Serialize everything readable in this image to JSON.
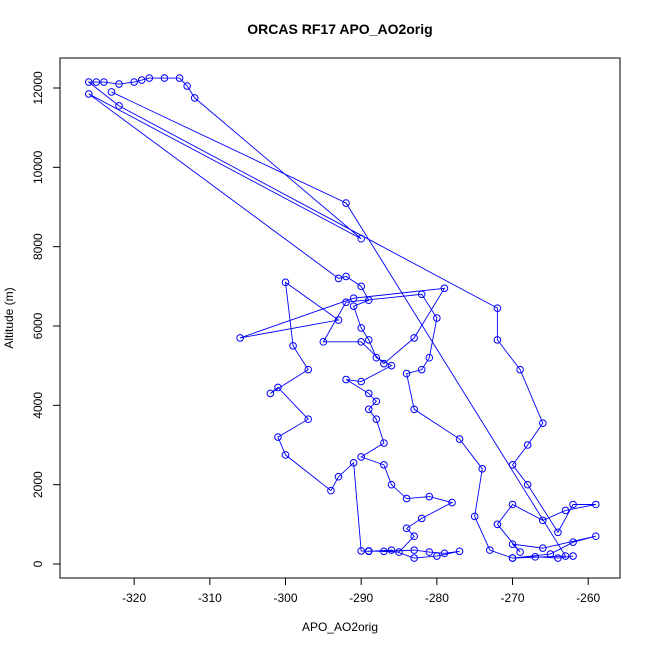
{
  "chart_data": {
    "type": "line",
    "title": "ORCAS RF17 APO_AO2orig",
    "x_label": "APO_AO2orig",
    "y_label": "Altitude (m)",
    "color": "#0000ff",
    "marker": "open-circle",
    "x": [
      -262,
      -264,
      -267,
      -270,
      -265,
      -262,
      -259,
      -266,
      -270,
      -269,
      -272,
      -270,
      -266,
      -263,
      -259,
      -262,
      -264,
      -268,
      -270,
      -268,
      -266,
      -269,
      -272,
      -272,
      -322,
      -326,
      -325,
      -324,
      -322,
      -320,
      -319,
      -318,
      -316,
      -314,
      -313,
      -312,
      -290,
      -326,
      -293,
      -292,
      -290,
      -289,
      -291,
      -290,
      -289,
      -288,
      -286,
      -290,
      -292,
      -289,
      -288,
      -289,
      -288,
      -287,
      -290,
      -287,
      -286,
      -284,
      -281,
      -278,
      -282,
      -284,
      -283,
      -285,
      -289,
      -287,
      -283,
      -281,
      -279,
      -277,
      -280,
      -283,
      -286,
      -289,
      -290,
      -291,
      -293,
      -294,
      -300,
      -301,
      -297,
      -301,
      -302,
      -297,
      -299,
      -300,
      -293,
      -306,
      -291,
      -279,
      -283,
      -287,
      -290,
      -295,
      -292,
      -282,
      -280,
      -281,
      -282,
      -284,
      -283,
      -277,
      -274,
      -275,
      -273,
      -270,
      -263,
      -292,
      -323
    ],
    "y": [
      200,
      150,
      180,
      150,
      250,
      550,
      700,
      400,
      500,
      300,
      1000,
      1500,
      1100,
      1350,
      1500,
      1500,
      800,
      2000,
      2500,
      3000,
      3550,
      4900,
      5650,
      6450,
      11550,
      12150,
      12150,
      12150,
      12100,
      12150,
      12200,
      12250,
      12250,
      12250,
      12050,
      11750,
      8200,
      11850,
      7200,
      7250,
      7000,
      6650,
      6500,
      5950,
      5650,
      5200,
      5000,
      4600,
      4650,
      4300,
      4100,
      3900,
      3650,
      3050,
      2700,
      2500,
      2000,
      1650,
      1700,
      1550,
      1150,
      900,
      700,
      300,
      330,
      320,
      350,
      300,
      270,
      320,
      200,
      150,
      350,
      320,
      330,
      2550,
      2200,
      1850,
      2750,
      3200,
      3650,
      4450,
      4300,
      4900,
      5500,
      7100,
      6150,
      5700,
      6700,
      6950,
      5700,
      5050,
      5600,
      5600,
      6600,
      6800,
      6200,
      5200,
      4900,
      4800,
      3900,
      3150,
      2400,
      1200,
      350,
      150,
      200,
      9100,
      11900
    ],
    "xlim": [
      -329.8,
      -255.8
    ],
    "ylim": [
      -353,
      12756
    ],
    "xticks": [
      -320,
      -310,
      -300,
      -290,
      -280,
      -270,
      -260
    ],
    "yticks": [
      0,
      2000,
      4000,
      6000,
      8000,
      10000,
      12000
    ]
  }
}
